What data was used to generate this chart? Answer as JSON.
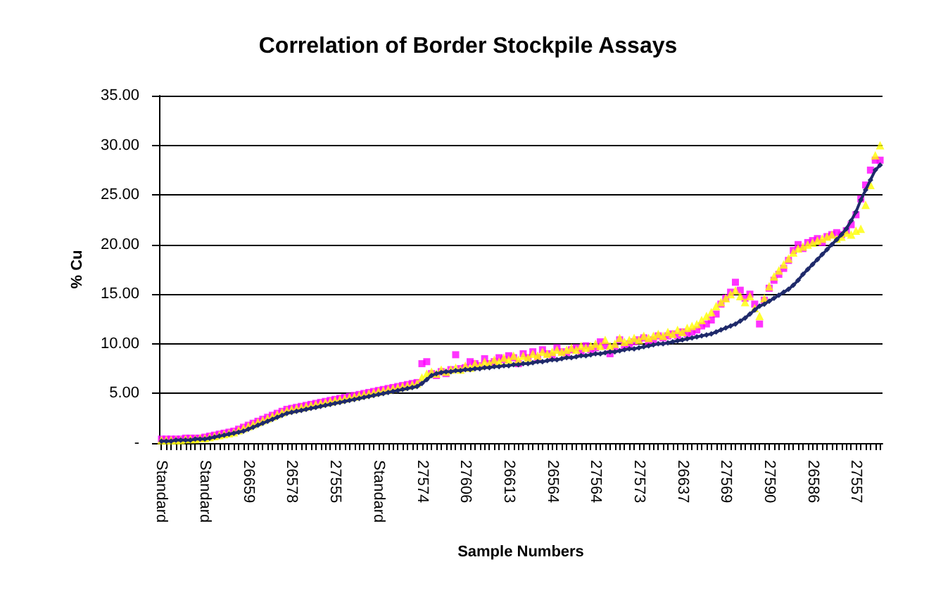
{
  "chart_data": {
    "type": "line",
    "title": "Correlation of Border Stockpile Assays",
    "xlabel": "Sample Numbers",
    "ylabel": "% Cu",
    "categories": [
      "Standard",
      null,
      null,
      null,
      null,
      null,
      null,
      null,
      null,
      "Standard",
      null,
      null,
      null,
      null,
      null,
      null,
      null,
      null,
      "26659",
      null,
      null,
      null,
      null,
      null,
      null,
      null,
      null,
      "26578",
      null,
      null,
      null,
      null,
      null,
      null,
      null,
      null,
      "27555",
      null,
      null,
      null,
      null,
      null,
      null,
      null,
      null,
      "Standard",
      null,
      null,
      null,
      null,
      null,
      null,
      null,
      null,
      "27574",
      null,
      null,
      null,
      null,
      null,
      null,
      null,
      null,
      "27606",
      null,
      null,
      null,
      null,
      null,
      null,
      null,
      null,
      "26613",
      null,
      null,
      null,
      null,
      null,
      null,
      null,
      null,
      "26564",
      null,
      null,
      null,
      null,
      null,
      null,
      null,
      null,
      "27564",
      null,
      null,
      null,
      null,
      null,
      null,
      null,
      null,
      "27573",
      null,
      null,
      null,
      null,
      null,
      null,
      null,
      null,
      "26637",
      null,
      null,
      null,
      null,
      null,
      null,
      null,
      null,
      "27569",
      null,
      null,
      null,
      null,
      null,
      null,
      null,
      null,
      "27590",
      null,
      null,
      null,
      null,
      null,
      null,
      null,
      null,
      "26586",
      null,
      null,
      null,
      null,
      null,
      null,
      null,
      null,
      "27557",
      null,
      null,
      null,
      null,
      null
    ],
    "ylim": [
      0,
      35
    ],
    "yticks": [
      {
        "value": 0,
        "label": "-"
      },
      {
        "value": 5,
        "label": "5.00"
      },
      {
        "value": 10,
        "label": "10.00"
      },
      {
        "value": 15,
        "label": "15.00"
      },
      {
        "value": 20,
        "label": "20.00"
      },
      {
        "value": 25,
        "label": "25.00"
      },
      {
        "value": 30,
        "label": "30.00"
      },
      {
        "value": 35,
        "label": "35.00"
      }
    ],
    "grid": "y",
    "series": [
      {
        "type": "line",
        "marker": "diamond",
        "color": "#1f2a6b",
        "values": [
          0.2,
          0.2,
          0.2,
          0.3,
          0.3,
          0.3,
          0.3,
          0.4,
          0.4,
          0.4,
          0.5,
          0.6,
          0.7,
          0.8,
          0.9,
          1.0,
          1.1,
          1.2,
          1.4,
          1.6,
          1.8,
          2.0,
          2.2,
          2.4,
          2.6,
          2.8,
          3.0,
          3.1,
          3.2,
          3.3,
          3.4,
          3.5,
          3.6,
          3.7,
          3.8,
          3.9,
          4.0,
          4.1,
          4.2,
          4.3,
          4.4,
          4.5,
          4.6,
          4.7,
          4.8,
          4.9,
          5.0,
          5.1,
          5.2,
          5.3,
          5.4,
          5.5,
          5.6,
          5.7,
          6.0,
          6.4,
          6.8,
          7.0,
          7.1,
          7.2,
          7.2,
          7.3,
          7.3,
          7.4,
          7.4,
          7.5,
          7.5,
          7.6,
          7.6,
          7.7,
          7.7,
          7.8,
          7.8,
          7.9,
          7.9,
          8.0,
          8.0,
          8.1,
          8.2,
          8.2,
          8.3,
          8.4,
          8.4,
          8.5,
          8.6,
          8.6,
          8.7,
          8.8,
          8.8,
          8.9,
          9.0,
          9.0,
          9.1,
          9.2,
          9.2,
          9.3,
          9.4,
          9.5,
          9.5,
          9.6,
          9.7,
          9.8,
          9.9,
          10.0,
          10.0,
          10.1,
          10.2,
          10.3,
          10.4,
          10.5,
          10.6,
          10.7,
          10.8,
          10.9,
          11.0,
          11.2,
          11.4,
          11.6,
          11.8,
          12.0,
          12.3,
          12.6,
          13.0,
          13.4,
          13.8,
          14.0,
          14.3,
          14.6,
          14.9,
          15.2,
          15.5,
          15.9,
          16.4,
          17.0,
          17.5,
          18.0,
          18.5,
          19.0,
          19.5,
          20.0,
          20.5,
          21.0,
          21.6,
          22.4,
          23.3,
          24.5,
          25.5,
          26.5,
          27.5,
          28.0
        ]
      },
      {
        "type": "scatter",
        "marker": "square",
        "color": "#ff00ff",
        "values": [
          0.4,
          0.4,
          0.4,
          0.4,
          0.4,
          0.5,
          0.5,
          0.5,
          0.5,
          0.6,
          0.7,
          0.8,
          0.9,
          1.0,
          1.1,
          1.2,
          1.4,
          1.6,
          1.8,
          2.0,
          2.2,
          2.4,
          2.6,
          2.8,
          3.0,
          3.2,
          3.4,
          3.5,
          3.6,
          3.7,
          3.8,
          3.9,
          4.0,
          4.1,
          4.2,
          4.3,
          4.4,
          4.5,
          4.6,
          4.7,
          4.8,
          4.9,
          5.0,
          5.1,
          5.2,
          5.3,
          5.4,
          5.5,
          5.6,
          5.7,
          5.8,
          5.9,
          6.0,
          6.1,
          8.0,
          8.2,
          7.0,
          6.8,
          7.2,
          7.0,
          7.4,
          8.9,
          7.5,
          7.6,
          8.2,
          8.0,
          7.8,
          8.5,
          8.0,
          8.2,
          8.6,
          8.4,
          8.8,
          8.6,
          8.0,
          9.0,
          8.6,
          9.2,
          8.6,
          9.4,
          9.0,
          8.8,
          9.6,
          9.2,
          9.0,
          9.4,
          9.6,
          9.2,
          9.8,
          9.4,
          9.6,
          10.2,
          9.8,
          9.0,
          9.6,
          10.4,
          9.8,
          10.0,
          10.2,
          10.4,
          10.6,
          10.2,
          10.4,
          10.8,
          10.6,
          10.8,
          11.0,
          10.8,
          11.2,
          11.0,
          11.2,
          11.4,
          11.8,
          12.0,
          12.4,
          13.0,
          14.0,
          14.6,
          15.2,
          16.2,
          15.4,
          14.6,
          15.0,
          14.0,
          12.0,
          14.4,
          15.6,
          16.4,
          17.0,
          17.6,
          18.4,
          19.4,
          20.0,
          19.6,
          20.2,
          20.4,
          20.6,
          20.2,
          20.8,
          21.0,
          21.2,
          21.0,
          21.4,
          22.0,
          23.0,
          24.6,
          26.0,
          27.5,
          28.5,
          28.5
        ]
      },
      {
        "type": "scatter",
        "marker": "triangle",
        "color": "#ffff00",
        "values": [
          0.3,
          0.3,
          0.3,
          0.3,
          0.3,
          0.4,
          0.4,
          0.4,
          0.5,
          0.5,
          0.6,
          0.7,
          0.8,
          0.9,
          1.0,
          1.1,
          1.3,
          1.5,
          1.7,
          1.9,
          2.1,
          2.3,
          2.5,
          2.7,
          2.9,
          3.1,
          3.3,
          3.4,
          3.5,
          3.6,
          3.7,
          3.8,
          3.9,
          4.0,
          4.1,
          4.2,
          4.3,
          4.4,
          4.5,
          4.6,
          4.7,
          4.8,
          4.9,
          5.0,
          5.1,
          5.2,
          5.3,
          5.4,
          5.5,
          5.6,
          5.7,
          5.8,
          5.9,
          6.0,
          6.6,
          7.0,
          7.2,
          7.0,
          7.4,
          7.2,
          7.4,
          7.6,
          7.4,
          7.8,
          7.6,
          8.0,
          7.8,
          8.2,
          8.0,
          8.4,
          8.2,
          8.6,
          8.4,
          8.8,
          8.4,
          8.8,
          8.6,
          9.0,
          8.8,
          9.2,
          9.0,
          9.2,
          9.4,
          9.2,
          9.4,
          9.6,
          9.4,
          9.8,
          9.6,
          9.8,
          10.0,
          9.8,
          10.4,
          9.8,
          10.0,
          10.6,
          10.2,
          10.4,
          10.6,
          10.4,
          10.8,
          10.6,
          10.8,
          11.0,
          10.8,
          11.2,
          11.0,
          11.4,
          11.2,
          11.6,
          11.8,
          12.0,
          12.4,
          12.8,
          13.2,
          13.8,
          14.2,
          14.6,
          15.0,
          15.4,
          14.8,
          14.2,
          14.8,
          13.6,
          12.8,
          14.6,
          15.8,
          16.8,
          17.4,
          18.0,
          18.6,
          19.2,
          19.6,
          19.8,
          20.0,
          20.2,
          20.4,
          20.6,
          20.8,
          21.0,
          20.6,
          20.8,
          21.2,
          21.0,
          21.4,
          21.6,
          24.0,
          26.0,
          29.0,
          30.0
        ]
      }
    ]
  }
}
